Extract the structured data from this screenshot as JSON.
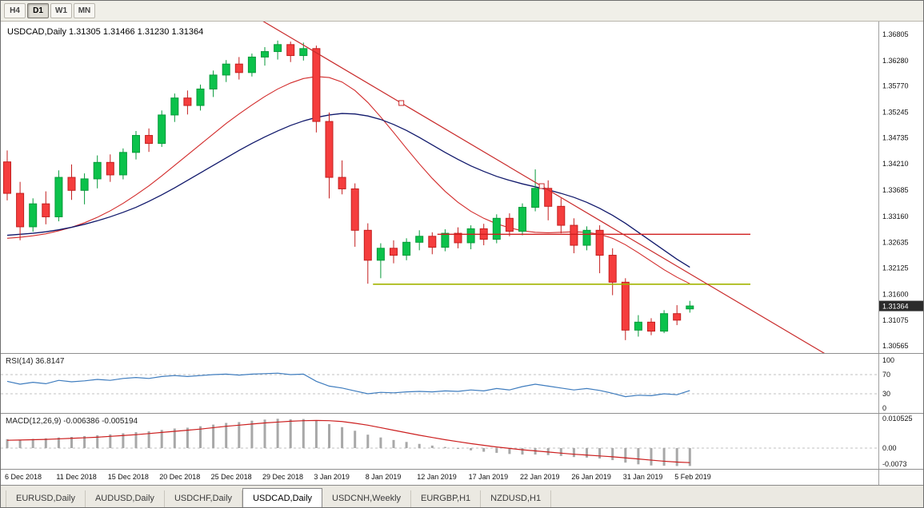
{
  "toolbar": {
    "buttons": [
      {
        "label": "H4",
        "active": false
      },
      {
        "label": "D1",
        "active": true
      },
      {
        "label": "W1",
        "active": false
      },
      {
        "label": "MN",
        "active": false
      }
    ]
  },
  "chart": {
    "symbol_period": "USDCAD,Daily",
    "open": "1.31305",
    "high": "1.31466",
    "low": "1.31230",
    "close": "1.31364",
    "price_badge": "1.31364"
  },
  "colors": {
    "bull_fill": "#0bc24b",
    "bull_stroke": "#079a3a",
    "bear_fill": "#f53d3d",
    "bear_stroke": "#c31f1f",
    "ma_fast": "#d22a2a",
    "ma_slow": "#10186b",
    "trendline": "#c92b2b",
    "hline_red": "#d01f1f",
    "hline_olive": "#a3b400",
    "rsi_line": "#3e7cbe",
    "macd_hist": "#a8a8a8",
    "macd_signal": "#cc1f1f",
    "axis_text": "#111111",
    "badge_bg": "#2b2b2b",
    "badge_text": "#ffffff",
    "grid_dash": "#c0c0c0"
  },
  "chart_data": {
    "type": "candlestick",
    "symbol": "USDCAD",
    "timeframe": "Daily",
    "x_labels": [
      "6 Dec 2018",
      "11 Dec 2018",
      "15 Dec 2018",
      "20 Dec 2018",
      "25 Dec 2018",
      "29 Dec 2018",
      "3 Jan 2019",
      "8 Jan 2019",
      "12 Jan 2019",
      "17 Jan 2019",
      "22 Jan 2019",
      "26 Jan 2019",
      "31 Jan 2019",
      "5 Feb 2019"
    ],
    "label_every_n_candles": 4,
    "price_axis_ticks": [
      1.36805,
      1.3628,
      1.3577,
      1.35245,
      1.34735,
      1.3421,
      1.33685,
      1.3316,
      1.32635,
      1.32125,
      1.316,
      1.31075,
      1.30565
    ],
    "candles": [
      [
        1.3425,
        1.3448,
        1.3348,
        1.3362
      ],
      [
        1.3362,
        1.3385,
        1.3268,
        1.3295
      ],
      [
        1.3295,
        1.3352,
        1.3285,
        1.3341
      ],
      [
        1.3341,
        1.3366,
        1.33,
        1.3315
      ],
      [
        1.3315,
        1.3408,
        1.3306,
        1.3394
      ],
      [
        1.3394,
        1.342,
        1.3349,
        1.3368
      ],
      [
        1.3368,
        1.3402,
        1.334,
        1.3391
      ],
      [
        1.3391,
        1.3438,
        1.3372,
        1.3424
      ],
      [
        1.3424,
        1.344,
        1.3385,
        1.3399
      ],
      [
        1.3399,
        1.3452,
        1.339,
        1.3444
      ],
      [
        1.3444,
        1.3487,
        1.343,
        1.3478
      ],
      [
        1.3478,
        1.3492,
        1.3445,
        1.3462
      ],
      [
        1.3462,
        1.3528,
        1.3455,
        1.3519
      ],
      [
        1.3519,
        1.3562,
        1.3505,
        1.3553
      ],
      [
        1.3553,
        1.3568,
        1.352,
        1.3538
      ],
      [
        1.3538,
        1.358,
        1.3528,
        1.3571
      ],
      [
        1.3571,
        1.3608,
        1.3555,
        1.3599
      ],
      [
        1.3599,
        1.3629,
        1.3585,
        1.3621
      ],
      [
        1.3621,
        1.3635,
        1.359,
        1.3604
      ],
      [
        1.3604,
        1.3642,
        1.3596,
        1.3635
      ],
      [
        1.3635,
        1.3655,
        1.3618,
        1.3646
      ],
      [
        1.3646,
        1.3668,
        1.363,
        1.366
      ],
      [
        1.366,
        1.3666,
        1.3625,
        1.3638
      ],
      [
        1.3638,
        1.3664,
        1.3628,
        1.3652
      ],
      [
        1.3652,
        1.3658,
        1.3484,
        1.3506
      ],
      [
        1.3506,
        1.3524,
        1.3352,
        1.3394
      ],
      [
        1.3394,
        1.3428,
        1.336,
        1.3371
      ],
      [
        1.3371,
        1.3382,
        1.3255,
        1.3288
      ],
      [
        1.3288,
        1.3302,
        1.3181,
        1.3228
      ],
      [
        1.3228,
        1.3262,
        1.3192,
        1.3252
      ],
      [
        1.3252,
        1.3268,
        1.3222,
        1.3238
      ],
      [
        1.3238,
        1.3272,
        1.3228,
        1.3264
      ],
      [
        1.3264,
        1.3288,
        1.3248,
        1.3276
      ],
      [
        1.3276,
        1.3284,
        1.324,
        1.3254
      ],
      [
        1.3254,
        1.329,
        1.3246,
        1.3282
      ],
      [
        1.3282,
        1.3294,
        1.3252,
        1.3263
      ],
      [
        1.3263,
        1.3298,
        1.325,
        1.3291
      ],
      [
        1.3291,
        1.3301,
        1.3258,
        1.327
      ],
      [
        1.327,
        1.332,
        1.3262,
        1.3312
      ],
      [
        1.3312,
        1.3322,
        1.3276,
        1.3286
      ],
      [
        1.3286,
        1.3342,
        1.3278,
        1.3334
      ],
      [
        1.3334,
        1.341,
        1.3326,
        1.3372
      ],
      [
        1.3372,
        1.3388,
        1.3308,
        1.3336
      ],
      [
        1.3336,
        1.3352,
        1.3282,
        1.3298
      ],
      [
        1.3298,
        1.3312,
        1.3242,
        1.3258
      ],
      [
        1.3258,
        1.3296,
        1.3248,
        1.3288
      ],
      [
        1.3288,
        1.3298,
        1.3202,
        1.3238
      ],
      [
        1.3238,
        1.3252,
        1.3158,
        1.3184
      ],
      [
        1.3184,
        1.3192,
        1.3068,
        1.3088
      ],
      [
        1.3088,
        1.3118,
        1.3075,
        1.3104
      ],
      [
        1.3104,
        1.3112,
        1.3078,
        1.3086
      ],
      [
        1.3086,
        1.3128,
        1.3082,
        1.3121
      ],
      [
        1.3121,
        1.3138,
        1.3098,
        1.3108
      ],
      [
        1.31305,
        1.31466,
        1.3123,
        1.31364
      ]
    ],
    "ma_fast": [
      1.3272,
      1.3274,
      1.3277,
      1.3281,
      1.3287,
      1.3294,
      1.3303,
      1.3314,
      1.3327,
      1.3342,
      1.3359,
      1.3377,
      1.3397,
      1.3418,
      1.3439,
      1.346,
      1.3481,
      1.3502,
      1.3521,
      1.3539,
      1.3556,
      1.3571,
      1.3583,
      1.3592,
      1.3596,
      1.3594,
      1.3585,
      1.3568,
      1.3544,
      1.3515,
      1.3484,
      1.3452,
      1.3421,
      1.3392,
      1.3366,
      1.3344,
      1.3326,
      1.3312,
      1.3301,
      1.3293,
      1.3287,
      1.3284,
      1.3283,
      1.3284,
      1.3285,
      1.3284,
      1.328,
      1.3272,
      1.3259,
      1.3243,
      1.3226,
      1.3209,
      1.3194,
      1.3181
    ],
    "ma_slow": [
      1.3278,
      1.328,
      1.3282,
      1.3285,
      1.3289,
      1.3294,
      1.33,
      1.3307,
      1.3315,
      1.3324,
      1.3334,
      1.3346,
      1.3359,
      1.3373,
      1.3388,
      1.3403,
      1.3418,
      1.3433,
      1.3448,
      1.3462,
      1.3475,
      1.3487,
      1.3498,
      1.3507,
      1.3514,
      1.3519,
      1.3522,
      1.3521,
      1.3517,
      1.351,
      1.35,
      1.3488,
      1.3474,
      1.3459,
      1.3444,
      1.343,
      1.3417,
      1.3406,
      1.3396,
      1.3388,
      1.3381,
      1.3375,
      1.3369,
      1.3362,
      1.3354,
      1.3344,
      1.3332,
      1.3318,
      1.3302,
      1.3284,
      1.3266,
      1.3248,
      1.323,
      1.3214
    ],
    "trendline": {
      "anchor1": {
        "index": 30.6,
        "price": 1.35429
      },
      "anchor2": {
        "index": 41.5,
        "price": 1.33765
      },
      "draw_from_index": 19,
      "draw_to_index": 64
    },
    "hline_red": {
      "price": 1.328,
      "from_index": 33.4,
      "to_index": 57.7
    },
    "hline_olive": {
      "price": 1.318,
      "from_index": 28.4,
      "to_index": 57.7
    },
    "rsi": {
      "label": "RSI(14)",
      "current": "36.8147",
      "period": 14,
      "ticks": [
        "100",
        "70",
        "30",
        "0"
      ],
      "values": [
        56,
        50,
        54,
        51,
        58,
        55,
        57,
        60,
        58,
        62,
        64,
        62,
        66,
        68,
        66,
        68,
        70,
        71,
        69,
        71,
        72,
        73,
        70,
        71,
        56,
        46,
        42,
        36,
        30,
        33,
        32,
        34,
        35,
        34,
        36,
        35,
        38,
        36,
        41,
        38,
        45,
        50,
        46,
        42,
        38,
        41,
        37,
        31,
        24,
        27,
        26,
        30,
        28,
        36.8
      ]
    },
    "macd": {
      "label": "MACD(12,26,9)",
      "current_main": "-0.006386",
      "current_signal": "-0.005194",
      "ticks": [
        {
          "text": "0.010525",
          "value": 0.010525
        },
        {
          "text": "0.00",
          "value": 0
        },
        {
          "text": "-0.0073",
          "value": -0.0073
        }
      ],
      "histogram": [
        0.0032,
        0.003,
        0.0033,
        0.0035,
        0.0038,
        0.004,
        0.0043,
        0.0046,
        0.0049,
        0.0053,
        0.0057,
        0.006,
        0.0065,
        0.007,
        0.0073,
        0.0078,
        0.0084,
        0.009,
        0.0093,
        0.0098,
        0.0102,
        0.0105,
        0.0103,
        0.0104,
        0.0097,
        0.0086,
        0.0075,
        0.0062,
        0.0048,
        0.0038,
        0.0029,
        0.0022,
        0.0015,
        0.0009,
        0.0004,
        -0.0002,
        -0.0008,
        -0.0013,
        -0.0017,
        -0.0021,
        -0.0023,
        -0.0023,
        -0.0025,
        -0.0028,
        -0.0032,
        -0.0034,
        -0.0037,
        -0.0043,
        -0.0052,
        -0.0058,
        -0.0062,
        -0.0063,
        -0.0064,
        -0.0064
      ],
      "signal": [
        0.0028,
        0.0029,
        0.003,
        0.0031,
        0.0033,
        0.0035,
        0.0037,
        0.0039,
        0.0042,
        0.0045,
        0.0048,
        0.0052,
        0.0056,
        0.006,
        0.0064,
        0.0068,
        0.0073,
        0.0078,
        0.0082,
        0.0086,
        0.009,
        0.0093,
        0.0096,
        0.0098,
        0.0099,
        0.0098,
        0.0095,
        0.0089,
        0.0082,
        0.0073,
        0.0064,
        0.0055,
        0.0046,
        0.0038,
        0.003,
        0.0023,
        0.0016,
        0.001,
        0.0004,
        -0.0001,
        -0.0006,
        -0.001,
        -0.0014,
        -0.0018,
        -0.0022,
        -0.0025,
        -0.0028,
        -0.0031,
        -0.0035,
        -0.0039,
        -0.0043,
        -0.0047,
        -0.005,
        -0.0052
      ]
    }
  },
  "tabs": {
    "items": [
      {
        "label": "EURUSD,Daily",
        "active": false
      },
      {
        "label": "AUDUSD,Daily",
        "active": false
      },
      {
        "label": "USDCHF,Daily",
        "active": false
      },
      {
        "label": "USDCAD,Daily",
        "active": true
      },
      {
        "label": "USDCNH,Weekly",
        "active": false
      },
      {
        "label": "EURGBP,H1",
        "active": false
      },
      {
        "label": "NZDUSD,H1",
        "active": false
      }
    ]
  }
}
